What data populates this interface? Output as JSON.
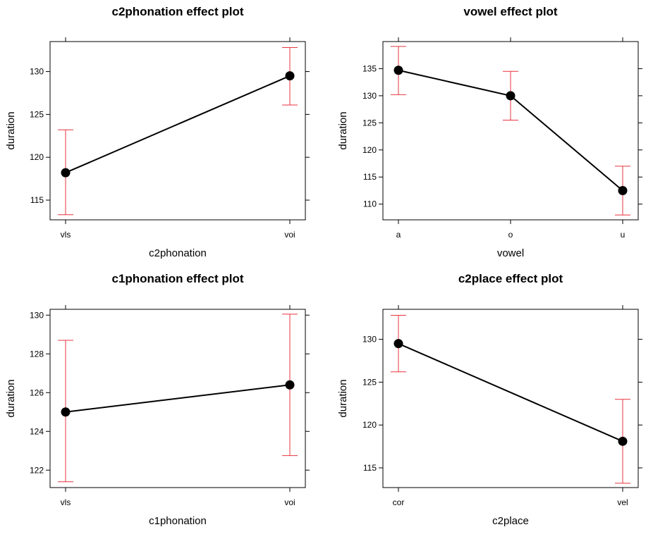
{
  "chart_data": [
    {
      "type": "line",
      "title": "c2phonation effect plot",
      "xlabel": "c2phonation",
      "ylabel": "duration",
      "categories": [
        "vls",
        "voi"
      ],
      "values": [
        118.2,
        129.5
      ],
      "lower": [
        113.3,
        126.1
      ],
      "upper": [
        123.2,
        132.8
      ],
      "yticks": [
        115,
        120,
        125,
        130
      ],
      "ylim": [
        112.7,
        133.5
      ],
      "grid": false,
      "line_color": "#000000",
      "errorbar_color": "#e8343f"
    },
    {
      "type": "line",
      "title": "vowel effect plot",
      "xlabel": "vowel",
      "ylabel": "duration",
      "categories": [
        "a",
        "o",
        "u"
      ],
      "values": [
        134.7,
        130.0,
        112.5
      ],
      "lower": [
        130.2,
        125.5,
        108.0
      ],
      "upper": [
        139.1,
        134.5,
        117.0
      ],
      "yticks": [
        110,
        115,
        120,
        125,
        130,
        135
      ],
      "ylim": [
        107.1,
        140.0
      ],
      "grid": false,
      "line_color": "#000000",
      "errorbar_color": "#e8343f"
    },
    {
      "type": "line",
      "title": "c1phonation effect plot",
      "xlabel": "c1phonation",
      "ylabel": "duration",
      "categories": [
        "vls",
        "voi"
      ],
      "values": [
        125.0,
        126.4
      ],
      "lower": [
        121.4,
        122.75
      ],
      "upper": [
        128.7,
        130.05
      ],
      "yticks": [
        122,
        124,
        126,
        128,
        130
      ],
      "ylim": [
        121.1,
        130.3
      ],
      "grid": false,
      "line_color": "#000000",
      "errorbar_color": "#e8343f"
    },
    {
      "type": "line",
      "title": "c2place effect plot",
      "xlabel": "c2place",
      "ylabel": "duration",
      "categories": [
        "cor",
        "vel"
      ],
      "values": [
        129.5,
        118.1
      ],
      "lower": [
        126.2,
        113.2
      ],
      "upper": [
        132.8,
        123.0
      ],
      "yticks": [
        115,
        120,
        125,
        130
      ],
      "ylim": [
        112.7,
        133.5
      ],
      "grid": false,
      "line_color": "#000000",
      "errorbar_color": "#e8343f"
    }
  ]
}
